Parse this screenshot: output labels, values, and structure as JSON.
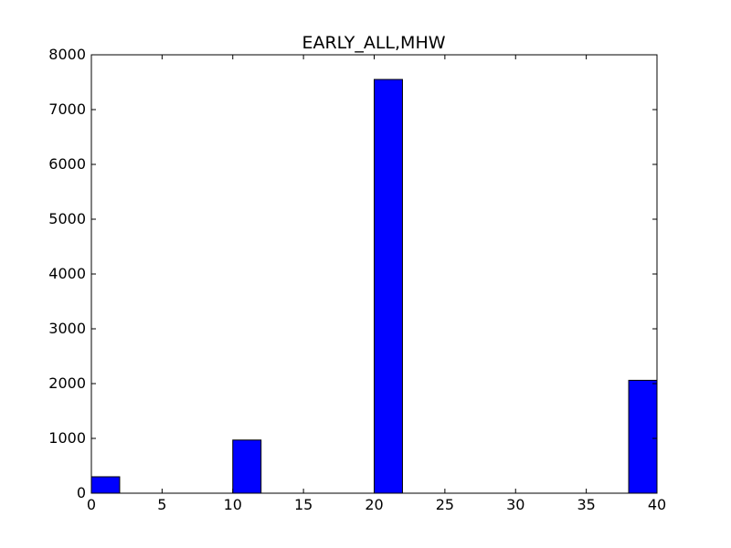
{
  "chart_data": {
    "type": "bar",
    "title": "EARLY_ALL,MHW",
    "xlabel": "",
    "ylabel": "",
    "xlim": [
      0,
      40
    ],
    "ylim": [
      0,
      8000
    ],
    "x_ticks": [
      0,
      5,
      10,
      15,
      20,
      25,
      30,
      35,
      40
    ],
    "y_ticks": [
      0,
      1000,
      2000,
      3000,
      4000,
      5000,
      6000,
      7000,
      8000
    ],
    "bin_width": 2,
    "bins": [
      {
        "x_start": 0,
        "value": 300
      },
      {
        "x_start": 2,
        "value": 0
      },
      {
        "x_start": 4,
        "value": 0
      },
      {
        "x_start": 6,
        "value": 0
      },
      {
        "x_start": 8,
        "value": 0
      },
      {
        "x_start": 10,
        "value": 970
      },
      {
        "x_start": 12,
        "value": 0
      },
      {
        "x_start": 14,
        "value": 0
      },
      {
        "x_start": 16,
        "value": 0
      },
      {
        "x_start": 18,
        "value": 0
      },
      {
        "x_start": 20,
        "value": 7550
      },
      {
        "x_start": 22,
        "value": 0
      },
      {
        "x_start": 24,
        "value": 0
      },
      {
        "x_start": 26,
        "value": 0
      },
      {
        "x_start": 28,
        "value": 0
      },
      {
        "x_start": 30,
        "value": 0
      },
      {
        "x_start": 32,
        "value": 0
      },
      {
        "x_start": 34,
        "value": 0
      },
      {
        "x_start": 36,
        "value": 0
      },
      {
        "x_start": 38,
        "value": 2060
      }
    ],
    "bar_color": "#0000ff",
    "edge_color": "#000000",
    "grid": false,
    "legend": "none"
  }
}
